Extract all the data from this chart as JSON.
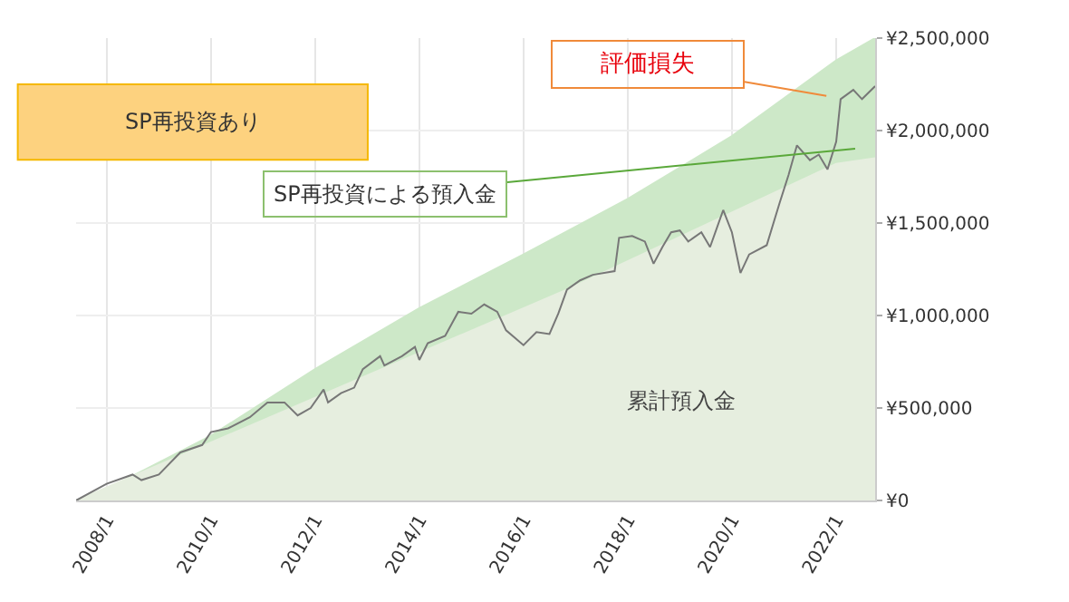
{
  "chart_data": {
    "type": "area",
    "xlim": [
      "2007-06",
      "2022-10"
    ],
    "xticks": [
      {
        "value": "2008-01",
        "label": "2008/1"
      },
      {
        "value": "2010-01",
        "label": "2010/1"
      },
      {
        "value": "2012-01",
        "label": "2012/1"
      },
      {
        "value": "2014-01",
        "label": "2014/1"
      },
      {
        "value": "2016-01",
        "label": "2016/1"
      },
      {
        "value": "2018-01",
        "label": "2018/1"
      },
      {
        "value": "2020-01",
        "label": "2020/1"
      },
      {
        "value": "2022-01",
        "label": "2022/1"
      }
    ],
    "ylim": [
      0,
      2500000
    ],
    "yticks": [
      {
        "value": 0,
        "label": "¥0"
      },
      {
        "value": 500000,
        "label": "¥500,000"
      },
      {
        "value": 1000000,
        "label": "¥1,000,000"
      },
      {
        "value": 1500000,
        "label": "¥1,500,000"
      },
      {
        "value": 2000000,
        "label": "¥2,000,000"
      },
      {
        "value": 2500000,
        "label": "¥2,500,000"
      }
    ],
    "grid": true,
    "series": [
      {
        "color": "#cde8c8",
        "x": [
          "2007-06",
          "2008-01",
          "2010-01",
          "2012-01",
          "2014-01",
          "2016-01",
          "2018-01",
          "2020-01",
          "2022-01",
          "2022-10"
        ],
        "values": [
          0,
          60000,
          350000,
          710000,
          1040000,
          1330000,
          1630000,
          1970000,
          2380000,
          2500000
        ]
      },
      {
        "color": "#e6eedf",
        "x": [
          "2007-06",
          "2016-11",
          "2022-01",
          "2022-10"
        ],
        "values": [
          0,
          1140000,
          1820000,
          1850000
        ]
      },
      {
        "type": "line",
        "color": "#777777",
        "x": [
          "2007-06",
          "2008-01",
          "2008-07",
          "2008-09",
          "2009-01",
          "2009-06",
          "2009-11",
          "2010-01",
          "2010-05",
          "2010-10",
          "2011-02",
          "2011-06",
          "2011-09",
          "2011-12",
          "2012-03",
          "2012-04",
          "2012-07",
          "2012-10",
          "2012-12",
          "2013-04",
          "2013-05",
          "2013-09",
          "2013-12",
          "2014-01",
          "2014-03",
          "2014-07",
          "2014-10",
          "2015-01",
          "2015-04",
          "2015-07",
          "2015-09",
          "2016-01",
          "2016-04",
          "2016-07",
          "2016-09",
          "2016-11",
          "2017-02",
          "2017-05",
          "2017-10",
          "2017-11",
          "2018-02",
          "2018-05",
          "2018-07",
          "2018-09",
          "2018-11",
          "2019-01",
          "2019-03",
          "2019-06",
          "2019-08",
          "2019-11",
          "2020-01",
          "2020-03",
          "2020-05",
          "2020-09",
          "2020-12",
          "2021-02",
          "2021-04",
          "2021-07",
          "2021-09",
          "2021-11",
          "2022-01",
          "2022-02",
          "2022-05",
          "2022-07",
          "2022-10"
        ],
        "values": [
          0,
          90000,
          140000,
          110000,
          140000,
          260000,
          300000,
          370000,
          390000,
          450000,
          530000,
          530000,
          460000,
          500000,
          600000,
          530000,
          580000,
          610000,
          710000,
          780000,
          730000,
          780000,
          830000,
          760000,
          850000,
          890000,
          1020000,
          1010000,
          1060000,
          1020000,
          920000,
          840000,
          910000,
          900000,
          1010000,
          1140000,
          1190000,
          1220000,
          1240000,
          1420000,
          1430000,
          1400000,
          1280000,
          1370000,
          1450000,
          1460000,
          1400000,
          1450000,
          1370000,
          1570000,
          1450000,
          1230000,
          1330000,
          1380000,
          1610000,
          1760000,
          1920000,
          1840000,
          1870000,
          1790000,
          1940000,
          2170000,
          2220000,
          2170000,
          2240000
        ]
      }
    ],
    "annotations": [
      "SP再投資あり",
      "評価損失",
      "SP再投資による預入金",
      "累計預入金"
    ]
  }
}
